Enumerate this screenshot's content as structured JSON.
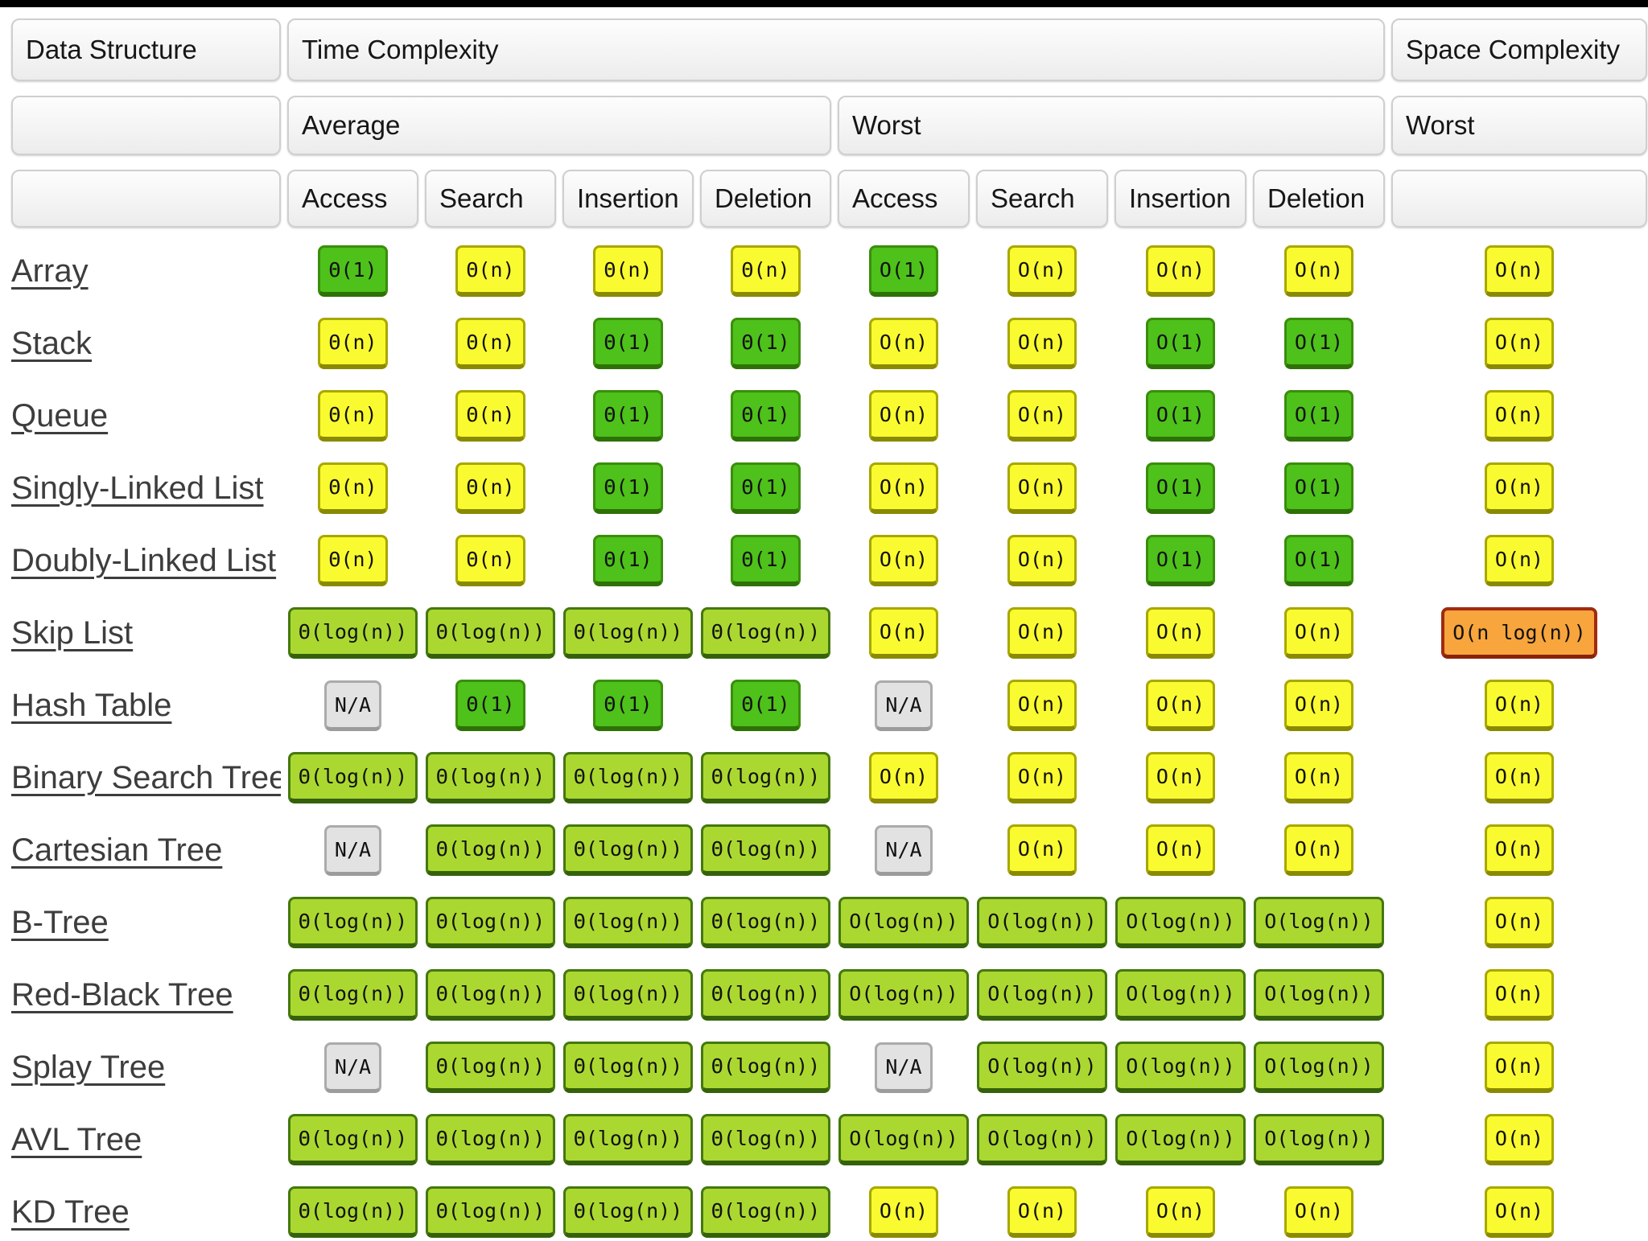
{
  "header": {
    "data_structure": "Data Structure",
    "time_complexity": "Time Complexity",
    "space_complexity": "Space Complexity",
    "average": "Average",
    "worst": "Worst",
    "space_worst": "Worst",
    "op_headers": [
      "Access",
      "Search",
      "Insertion",
      "Deletion"
    ]
  },
  "palette": {
    "green": {
      "bg": "#4EC11B",
      "border": "#3A8E0B",
      "bottom": "#2E7106"
    },
    "yellow": {
      "bg": "#FAFA30",
      "border": "#A8A800",
      "bottom": "#8A8A00"
    },
    "lime": {
      "bg": "#ABD830",
      "border": "#45780F",
      "bottom": "#35610A"
    },
    "orange": {
      "bg": "#F7A53C",
      "border": "#A02B10",
      "bottom": "#8A2208"
    },
    "gray": {
      "bg": "#E2E2E2",
      "border": "#ABABAB",
      "bottom": "#9C9C9C"
    }
  },
  "rows": [
    {
      "label": "Array",
      "time": [
        {
          "t": "Θ(1)",
          "tone": "green"
        },
        {
          "t": "Θ(n)",
          "tone": "yellow"
        },
        {
          "t": "Θ(n)",
          "tone": "yellow"
        },
        {
          "t": "Θ(n)",
          "tone": "yellow"
        },
        {
          "t": "O(1)",
          "tone": "green"
        },
        {
          "t": "O(n)",
          "tone": "yellow"
        },
        {
          "t": "O(n)",
          "tone": "yellow"
        },
        {
          "t": "O(n)",
          "tone": "yellow"
        }
      ],
      "space": {
        "t": "O(n)",
        "tone": "yellow"
      }
    },
    {
      "label": "Stack",
      "time": [
        {
          "t": "Θ(n)",
          "tone": "yellow"
        },
        {
          "t": "Θ(n)",
          "tone": "yellow"
        },
        {
          "t": "Θ(1)",
          "tone": "green"
        },
        {
          "t": "Θ(1)",
          "tone": "green"
        },
        {
          "t": "O(n)",
          "tone": "yellow"
        },
        {
          "t": "O(n)",
          "tone": "yellow"
        },
        {
          "t": "O(1)",
          "tone": "green"
        },
        {
          "t": "O(1)",
          "tone": "green"
        }
      ],
      "space": {
        "t": "O(n)",
        "tone": "yellow"
      }
    },
    {
      "label": "Queue",
      "time": [
        {
          "t": "Θ(n)",
          "tone": "yellow"
        },
        {
          "t": "Θ(n)",
          "tone": "yellow"
        },
        {
          "t": "Θ(1)",
          "tone": "green"
        },
        {
          "t": "Θ(1)",
          "tone": "green"
        },
        {
          "t": "O(n)",
          "tone": "yellow"
        },
        {
          "t": "O(n)",
          "tone": "yellow"
        },
        {
          "t": "O(1)",
          "tone": "green"
        },
        {
          "t": "O(1)",
          "tone": "green"
        }
      ],
      "space": {
        "t": "O(n)",
        "tone": "yellow"
      }
    },
    {
      "label": "Singly-Linked List",
      "time": [
        {
          "t": "Θ(n)",
          "tone": "yellow"
        },
        {
          "t": "Θ(n)",
          "tone": "yellow"
        },
        {
          "t": "Θ(1)",
          "tone": "green"
        },
        {
          "t": "Θ(1)",
          "tone": "green"
        },
        {
          "t": "O(n)",
          "tone": "yellow"
        },
        {
          "t": "O(n)",
          "tone": "yellow"
        },
        {
          "t": "O(1)",
          "tone": "green"
        },
        {
          "t": "O(1)",
          "tone": "green"
        }
      ],
      "space": {
        "t": "O(n)",
        "tone": "yellow"
      }
    },
    {
      "label": "Doubly-Linked List",
      "time": [
        {
          "t": "Θ(n)",
          "tone": "yellow"
        },
        {
          "t": "Θ(n)",
          "tone": "yellow"
        },
        {
          "t": "Θ(1)",
          "tone": "green"
        },
        {
          "t": "Θ(1)",
          "tone": "green"
        },
        {
          "t": "O(n)",
          "tone": "yellow"
        },
        {
          "t": "O(n)",
          "tone": "yellow"
        },
        {
          "t": "O(1)",
          "tone": "green"
        },
        {
          "t": "O(1)",
          "tone": "green"
        }
      ],
      "space": {
        "t": "O(n)",
        "tone": "yellow"
      }
    },
    {
      "label": "Skip List",
      "time": [
        {
          "t": "Θ(log(n))",
          "tone": "lime"
        },
        {
          "t": "Θ(log(n))",
          "tone": "lime"
        },
        {
          "t": "Θ(log(n))",
          "tone": "lime"
        },
        {
          "t": "Θ(log(n))",
          "tone": "lime"
        },
        {
          "t": "O(n)",
          "tone": "yellow"
        },
        {
          "t": "O(n)",
          "tone": "yellow"
        },
        {
          "t": "O(n)",
          "tone": "yellow"
        },
        {
          "t": "O(n)",
          "tone": "yellow"
        }
      ],
      "space": {
        "t": "O(n log(n))",
        "tone": "orange"
      }
    },
    {
      "label": "Hash Table",
      "time": [
        {
          "t": "N/A",
          "tone": "gray"
        },
        {
          "t": "Θ(1)",
          "tone": "green"
        },
        {
          "t": "Θ(1)",
          "tone": "green"
        },
        {
          "t": "Θ(1)",
          "tone": "green"
        },
        {
          "t": "N/A",
          "tone": "gray"
        },
        {
          "t": "O(n)",
          "tone": "yellow"
        },
        {
          "t": "O(n)",
          "tone": "yellow"
        },
        {
          "t": "O(n)",
          "tone": "yellow"
        }
      ],
      "space": {
        "t": "O(n)",
        "tone": "yellow"
      }
    },
    {
      "label": "Binary Search Tree",
      "time": [
        {
          "t": "Θ(log(n))",
          "tone": "lime"
        },
        {
          "t": "Θ(log(n))",
          "tone": "lime"
        },
        {
          "t": "Θ(log(n))",
          "tone": "lime"
        },
        {
          "t": "Θ(log(n))",
          "tone": "lime"
        },
        {
          "t": "O(n)",
          "tone": "yellow"
        },
        {
          "t": "O(n)",
          "tone": "yellow"
        },
        {
          "t": "O(n)",
          "tone": "yellow"
        },
        {
          "t": "O(n)",
          "tone": "yellow"
        }
      ],
      "space": {
        "t": "O(n)",
        "tone": "yellow"
      }
    },
    {
      "label": "Cartesian Tree",
      "time": [
        {
          "t": "N/A",
          "tone": "gray"
        },
        {
          "t": "Θ(log(n))",
          "tone": "lime"
        },
        {
          "t": "Θ(log(n))",
          "tone": "lime"
        },
        {
          "t": "Θ(log(n))",
          "tone": "lime"
        },
        {
          "t": "N/A",
          "tone": "gray"
        },
        {
          "t": "O(n)",
          "tone": "yellow"
        },
        {
          "t": "O(n)",
          "tone": "yellow"
        },
        {
          "t": "O(n)",
          "tone": "yellow"
        }
      ],
      "space": {
        "t": "O(n)",
        "tone": "yellow"
      }
    },
    {
      "label": "B-Tree",
      "time": [
        {
          "t": "Θ(log(n))",
          "tone": "lime"
        },
        {
          "t": "Θ(log(n))",
          "tone": "lime"
        },
        {
          "t": "Θ(log(n))",
          "tone": "lime"
        },
        {
          "t": "Θ(log(n))",
          "tone": "lime"
        },
        {
          "t": "O(log(n))",
          "tone": "lime"
        },
        {
          "t": "O(log(n))",
          "tone": "lime"
        },
        {
          "t": "O(log(n))",
          "tone": "lime"
        },
        {
          "t": "O(log(n))",
          "tone": "lime"
        }
      ],
      "space": {
        "t": "O(n)",
        "tone": "yellow"
      }
    },
    {
      "label": "Red-Black Tree",
      "time": [
        {
          "t": "Θ(log(n))",
          "tone": "lime"
        },
        {
          "t": "Θ(log(n))",
          "tone": "lime"
        },
        {
          "t": "Θ(log(n))",
          "tone": "lime"
        },
        {
          "t": "Θ(log(n))",
          "tone": "lime"
        },
        {
          "t": "O(log(n))",
          "tone": "lime"
        },
        {
          "t": "O(log(n))",
          "tone": "lime"
        },
        {
          "t": "O(log(n))",
          "tone": "lime"
        },
        {
          "t": "O(log(n))",
          "tone": "lime"
        }
      ],
      "space": {
        "t": "O(n)",
        "tone": "yellow"
      }
    },
    {
      "label": "Splay Tree",
      "time": [
        {
          "t": "N/A",
          "tone": "gray"
        },
        {
          "t": "Θ(log(n))",
          "tone": "lime"
        },
        {
          "t": "Θ(log(n))",
          "tone": "lime"
        },
        {
          "t": "Θ(log(n))",
          "tone": "lime"
        },
        {
          "t": "N/A",
          "tone": "gray"
        },
        {
          "t": "O(log(n))",
          "tone": "lime"
        },
        {
          "t": "O(log(n))",
          "tone": "lime"
        },
        {
          "t": "O(log(n))",
          "tone": "lime"
        }
      ],
      "space": {
        "t": "O(n)",
        "tone": "yellow"
      }
    },
    {
      "label": "AVL Tree",
      "time": [
        {
          "t": "Θ(log(n))",
          "tone": "lime"
        },
        {
          "t": "Θ(log(n))",
          "tone": "lime"
        },
        {
          "t": "Θ(log(n))",
          "tone": "lime"
        },
        {
          "t": "Θ(log(n))",
          "tone": "lime"
        },
        {
          "t": "O(log(n))",
          "tone": "lime"
        },
        {
          "t": "O(log(n))",
          "tone": "lime"
        },
        {
          "t": "O(log(n))",
          "tone": "lime"
        },
        {
          "t": "O(log(n))",
          "tone": "lime"
        }
      ],
      "space": {
        "t": "O(n)",
        "tone": "yellow"
      }
    },
    {
      "label": "KD Tree",
      "time": [
        {
          "t": "Θ(log(n))",
          "tone": "lime"
        },
        {
          "t": "Θ(log(n))",
          "tone": "lime"
        },
        {
          "t": "Θ(log(n))",
          "tone": "lime"
        },
        {
          "t": "Θ(log(n))",
          "tone": "lime"
        },
        {
          "t": "O(n)",
          "tone": "yellow"
        },
        {
          "t": "O(n)",
          "tone": "yellow"
        },
        {
          "t": "O(n)",
          "tone": "yellow"
        },
        {
          "t": "O(n)",
          "tone": "yellow"
        }
      ],
      "space": {
        "t": "O(n)",
        "tone": "yellow"
      }
    }
  ]
}
